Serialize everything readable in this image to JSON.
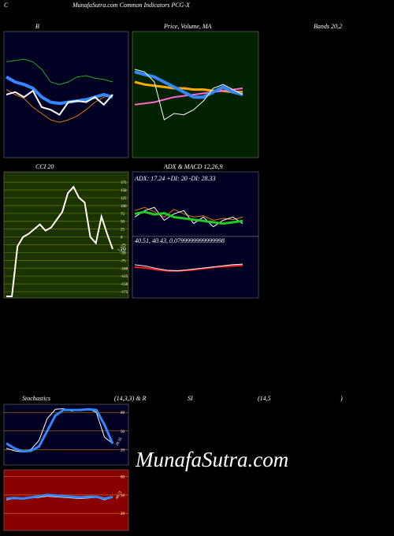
{
  "header": {
    "left": "C",
    "title": "MunafaSutra.com Common Indicators PCG-X",
    "bands": "Bands 20,2"
  },
  "watermark": "MunafaSutra.com",
  "panels": [
    {
      "label": "B",
      "bg": "#000022",
      "ylim": [
        0,
        100
      ],
      "series": [
        {
          "color": "#22aa22",
          "width": 1,
          "values": [
            76,
            77,
            78,
            76,
            70,
            60,
            58,
            60,
            64,
            65,
            63,
            62,
            60
          ]
        },
        {
          "color": "#dd7700",
          "width": 1,
          "values": [
            54,
            50,
            47,
            40,
            35,
            30,
            28,
            30,
            33,
            38,
            44,
            48,
            50
          ]
        },
        {
          "color": "#3388ff",
          "width": 4,
          "values": [
            64,
            60,
            58,
            55,
            48,
            44,
            43,
            44,
            45,
            46,
            48,
            50,
            48
          ]
        },
        {
          "color": "#ffffff",
          "width": 2,
          "values": [
            50,
            52,
            48,
            53,
            40,
            38,
            34,
            44,
            45,
            44,
            48,
            42,
            50
          ]
        }
      ]
    },
    {
      "label": "Price, Volume, MA",
      "bg": "#002200",
      "ylim": [
        0,
        100
      ],
      "series": [
        {
          "color": "#ffaa00",
          "width": 3,
          "values": [
            60,
            58,
            57,
            56,
            55,
            55,
            54,
            54,
            53,
            53,
            52,
            52
          ]
        },
        {
          "color": "#ff66cc",
          "width": 2,
          "values": [
            42,
            43,
            44,
            46,
            48,
            49,
            50,
            51,
            52,
            53,
            54,
            55
          ]
        },
        {
          "color": "#3388ff",
          "width": 4,
          "values": [
            68,
            66,
            64,
            60,
            56,
            52,
            48,
            48,
            52,
            56,
            52,
            50
          ]
        },
        {
          "color": "#ffffff",
          "width": 1,
          "values": [
            70,
            68,
            60,
            30,
            35,
            34,
            38,
            45,
            55,
            58,
            54,
            50
          ]
        }
      ]
    },
    {
      "label": "CCI 20",
      "bg": "#1a3300",
      "ylim": [
        -195,
        208
      ],
      "grid_color": "#667700",
      "yticks": [
        175,
        150,
        125,
        100,
        75,
        50,
        25,
        0,
        -25,
        -50,
        -75,
        -100,
        -125,
        -150,
        -175
      ],
      "value_label": "-39",
      "series": [
        {
          "color": "#ffffff",
          "width": 2,
          "values": [
            -190,
            -190,
            -30,
            0,
            10,
            25,
            40,
            20,
            30,
            55,
            80,
            140,
            160,
            125,
            110,
            0,
            -20,
            65,
            10,
            -39
          ]
        }
      ]
    },
    {
      "label": "ADX  & MACD 12,26,9",
      "info": "ADX: 17.24  +DI: 20  -DI: 28.33",
      "bg": "#000022",
      "ylim": [
        0,
        100
      ],
      "series": [
        {
          "color": "#dd7700",
          "width": 1,
          "values": [
            40,
            45,
            38,
            30,
            42,
            35,
            30,
            32,
            25,
            28,
            26,
            30
          ]
        },
        {
          "color": "#ffffff",
          "width": 1,
          "values": [
            30,
            40,
            45,
            25,
            35,
            40,
            20,
            30,
            15,
            25,
            30,
            20
          ]
        },
        {
          "color": "#22cc22",
          "width": 3,
          "values": [
            35,
            38,
            34,
            36,
            30,
            28,
            26,
            24,
            22,
            20,
            22,
            24
          ]
        }
      ]
    },
    {
      "info": "40.51,  40.43,  0.0799999999999998",
      "bg": "#000022",
      "ylim": [
        0,
        100
      ],
      "series": [
        {
          "color": "#ff2222",
          "width": 2,
          "values": [
            50,
            49,
            46,
            44,
            44,
            45,
            47,
            49,
            51,
            52,
            53
          ]
        },
        {
          "color": "#ffffff",
          "width": 1,
          "values": [
            54,
            52,
            48,
            45,
            44,
            46,
            48,
            50,
            52,
            54,
            55
          ]
        }
      ]
    },
    {
      "label_parts": [
        "Stochastics",
        "(14,3,3) & R",
        "SI",
        "(14,5",
        ")"
      ],
      "bg": "#000022",
      "ylim": [
        -5,
        93
      ],
      "grid_color": "#aa6600",
      "yticks": [
        80,
        50,
        20
      ],
      "value_label": "29.33",
      "series": [
        {
          "color": "#ffffff",
          "width": 1,
          "values": [
            22,
            18,
            16,
            20,
            35,
            70,
            85,
            86,
            82,
            85,
            86,
            80,
            40,
            30
          ]
        },
        {
          "color": "#3388ff",
          "width": 3,
          "values": [
            30,
            22,
            17,
            18,
            25,
            50,
            75,
            84,
            84,
            84,
            85,
            84,
            60,
            29.33
          ]
        }
      ]
    },
    {
      "bg": "#880000",
      "ylim": [
        -8,
        91
      ],
      "grid_color": "#cc6600",
      "yticks": [
        80,
        50,
        20
      ],
      "value_label": "46.71",
      "series": [
        {
          "color": "#ffffff",
          "width": 1,
          "values": [
            42,
            44,
            43,
            45,
            46,
            48,
            47,
            46,
            45,
            44,
            45,
            46,
            42,
            46
          ]
        },
        {
          "color": "#3388ff",
          "width": 3,
          "values": [
            44,
            45,
            44,
            46,
            48,
            50,
            49,
            48,
            47,
            46,
            47,
            47,
            44,
            46.71
          ]
        }
      ]
    }
  ]
}
